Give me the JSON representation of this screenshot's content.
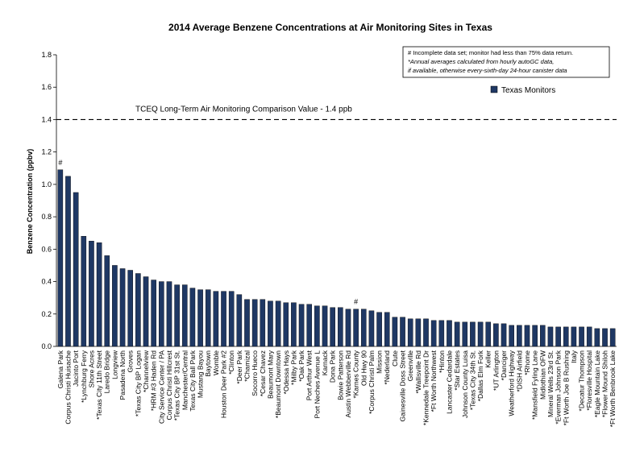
{
  "chart_data": {
    "type": "bar",
    "title": "2014 Average Benzene Concentrations at Air Monitoring Sites in Texas",
    "y_label": "Benzene Concentration (ppbv)",
    "categories": [
      "Galena Park",
      "Corpus Christi Huisache",
      "Jacinto Port",
      "*Lynchburg Ferry",
      "Shore Acres",
      "*Texas City 11th Street",
      "Laredo Bridge",
      "Longview",
      "Pasadena North",
      "Groves",
      "*Texas City BP Logan",
      "*Channelview",
      "*HRM #3 Haden Rd",
      "City Service Center / PA",
      "Corpus Christi Hillcrest",
      "*Texas City BP 31st St.",
      "Manchester/Central",
      "Texas City Ball Park",
      "Mustang Bayou",
      "Baytown",
      "Womble",
      "Houston Deer Park #2",
      "*Clinton",
      "*Deer Park",
      "*Chamizal",
      "Socorro Hueco",
      "*Cesar Chavez",
      "Beaumont Mary",
      "*Beaumont Downtown",
      "*Odessa Hays",
      "*Milby Park",
      "*Oak Park",
      "Port Arthur West",
      "Port Neches Avenue L",
      "Karnack",
      "Dona Park",
      "Bowie Patterson",
      "Austin Webberville Rd",
      "*Karnes County",
      "Old Hwy 90",
      "*Corpus Christi Palm",
      "Mission",
      "*Nederland",
      "Clute",
      "Gainesville Doss Street",
      "Greenville",
      "*Wallisville Rd",
      "*Kennedale Treepoint Dr",
      "*Ft Worth Northwest",
      "*Hinton",
      "Lancaster Cedardale",
      "*Star Estates",
      "Johnson County Luisa",
      "*Texas City 34th St.",
      "*Dallas Elm Fork",
      "Keller",
      "*UT Arlington",
      "*Danciger",
      "Weatherford Highway",
      "*DISH Airfield",
      "*Rhome",
      "*Mansfield Fyling Lane",
      "Midlothian OFW",
      "Mineral Wells 23rd St.",
      "*Everman Johnson Park",
      "*Ft Worth Joe B Rushing",
      "Italy",
      "*Decatur Thompson",
      "*Floresville Hospital",
      "*Eagle Mountain Lake",
      "*Flower Mound Shiloh",
      "*Ft Worth Benbrook Lake"
    ],
    "series": [
      {
        "name": "Texas Monitors",
        "color": "#1f3864",
        "values": [
          1.09,
          1.05,
          0.95,
          0.68,
          0.65,
          0.64,
          0.56,
          0.5,
          0.48,
          0.47,
          0.45,
          0.43,
          0.41,
          0.4,
          0.4,
          0.38,
          0.38,
          0.36,
          0.35,
          0.35,
          0.34,
          0.34,
          0.34,
          0.32,
          0.29,
          0.29,
          0.29,
          0.28,
          0.28,
          0.27,
          0.27,
          0.26,
          0.26,
          0.25,
          0.25,
          0.24,
          0.24,
          0.23,
          0.23,
          0.23,
          0.22,
          0.21,
          0.21,
          0.18,
          0.18,
          0.17,
          0.17,
          0.17,
          0.16,
          0.16,
          0.16,
          0.15,
          0.15,
          0.15,
          0.15,
          0.15,
          0.14,
          0.14,
          0.13,
          0.13,
          0.13,
          0.13,
          0.13,
          0.12,
          0.12,
          0.12,
          0.12,
          0.12,
          0.12,
          0.11,
          0.11,
          0.11
        ]
      }
    ],
    "ylim": [
      0,
      1.8
    ],
    "yticks": [
      {
        "value": 0,
        "label": "0.0"
      },
      0.2,
      0.4,
      0.6,
      0.8,
      {
        "value": 1,
        "label": "1.0"
      },
      1.2,
      1.4,
      1.6,
      1.8
    ],
    "reference_line": {
      "value": 1.4,
      "label": "TCEQ Long-Term Air Monitoring Comparison Value - 1.4 ppb"
    },
    "annotations": [
      {
        "category": "Galena Park",
        "text": "#"
      },
      {
        "category": "*Karnes County",
        "text": "#"
      }
    ],
    "notes": [
      "# Incomplete data set; monitor had less than 75% data return.",
      "*Annual averages calculated from hourly autoGC data,",
      "if available, otherwise every-sixth-day 24-hour canister data"
    ],
    "legend": "upper right"
  }
}
